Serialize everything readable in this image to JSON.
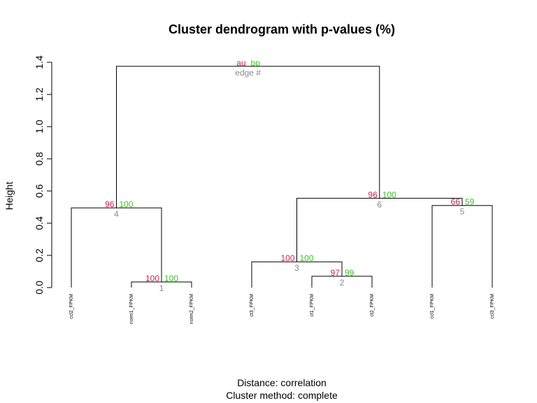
{
  "chart_data": {
    "type": "dendrogram",
    "title": "Cluster dendrogram with p-values (%)",
    "ylabel": "Height",
    "ylim": [
      0,
      1.4
    ],
    "yticks": [
      0.0,
      0.2,
      0.4,
      0.6,
      0.8,
      1.0,
      1.2,
      1.4
    ],
    "ytick_labels": [
      "0.0",
      "0.2",
      "0.4",
      "0.6",
      "0.8",
      "1.0",
      "1.2",
      "1.4"
    ],
    "leaves": [
      "ccl2_FPKM",
      "norm1_FPKM",
      "norm2_FPKM",
      "ct3_FPKM",
      "ct1_FPKM",
      "ct2_FPKM",
      "ccl1_FPKM",
      "ccl3_FPKM"
    ],
    "merges": [
      {
        "left": "leaf:1",
        "right": "leaf:2",
        "height": 0.035,
        "au": "100",
        "bp": "100",
        "edge": "1"
      },
      {
        "left": "leaf:4",
        "right": "leaf:5",
        "height": 0.07,
        "au": "97",
        "bp": "99",
        "edge": "2"
      },
      {
        "left": "leaf:3",
        "right": "node:1",
        "height": 0.16,
        "au": "100",
        "bp": "100",
        "edge": "3"
      },
      {
        "left": "leaf:0",
        "right": "node:0",
        "height": 0.495,
        "au": "96",
        "bp": "100",
        "edge": "4"
      },
      {
        "left": "leaf:6",
        "right": "leaf:7",
        "height": 0.51,
        "au": "66",
        "bp": "59",
        "edge": "5"
      },
      {
        "left": "node:2",
        "right": "node:4",
        "height": 0.555,
        "au": "96",
        "bp": "100",
        "edge": "6"
      },
      {
        "left": "node:3",
        "right": "node:5",
        "height": 1.375,
        "au": "au",
        "bp": "bp",
        "edge": "edge #"
      }
    ],
    "colors": {
      "au": "#c8254f",
      "bp": "#3fc22b",
      "edge": "#8a8a8a"
    },
    "caption_distance": "Distance:  correlation",
    "caption_method": "Cluster method: complete"
  }
}
